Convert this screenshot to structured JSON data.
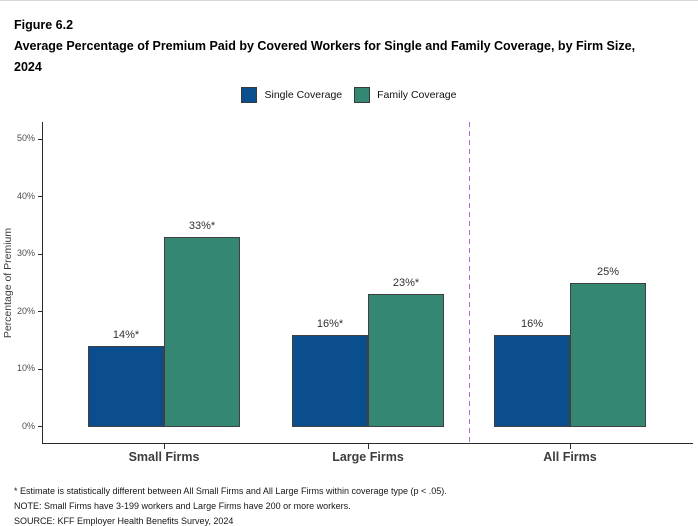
{
  "figure": {
    "label": "Figure 6.2"
  },
  "title": "Average Percentage of Premium Paid by Covered Workers for Single and Family Coverage, by Firm Size, 2024",
  "legend": {
    "items": [
      {
        "label": "Single Coverage",
        "color": "#0B4E8D"
      },
      {
        "label": "Family Coverage",
        "color": "#338773"
      }
    ]
  },
  "chart_data": {
    "type": "bar",
    "title": "Average Percentage of Premium Paid by Covered Workers for Single and Family Coverage, by Firm Size, 2024",
    "categories": [
      "Small Firms",
      "Large Firms",
      "All Firms"
    ],
    "series": [
      {
        "name": "Single Coverage",
        "values": [
          14,
          16,
          16
        ],
        "labels": [
          "14%*",
          "16%*",
          "16%"
        ],
        "color": "#0B4E8D"
      },
      {
        "name": "Family Coverage",
        "values": [
          33,
          23,
          25
        ],
        "labels": [
          "33%*",
          "23%*",
          "25%"
        ],
        "color": "#338773"
      }
    ],
    "xlabel": "",
    "ylabel": "Percentage of Premium",
    "ylim": [
      0,
      50
    ],
    "yticks": [
      0,
      10,
      20,
      30,
      40,
      50
    ],
    "ytick_labels": [
      "0%",
      "10%",
      "20%",
      "30%",
      "40%",
      "50%"
    ],
    "grid": false,
    "legend_position": "top-center",
    "separator_after_category": "Large Firms"
  },
  "footnotes": [
    "* Estimate is statistically different between All Small Firms and All Large Firms within coverage type (p < .05).",
    "NOTE: Small Firms have 3-199 workers and Large Firms have 200 or more workers.",
    "SOURCE: KFF Employer Health Benefits Survey, 2024"
  ],
  "colors": {
    "single": "#0B4E8D",
    "family": "#338773",
    "separator": "#BA68C8",
    "axis": "#2B2B2B",
    "tick_label": "#4D4D4D",
    "category_label": "#3D3D3D",
    "bar_border": "#404040"
  }
}
